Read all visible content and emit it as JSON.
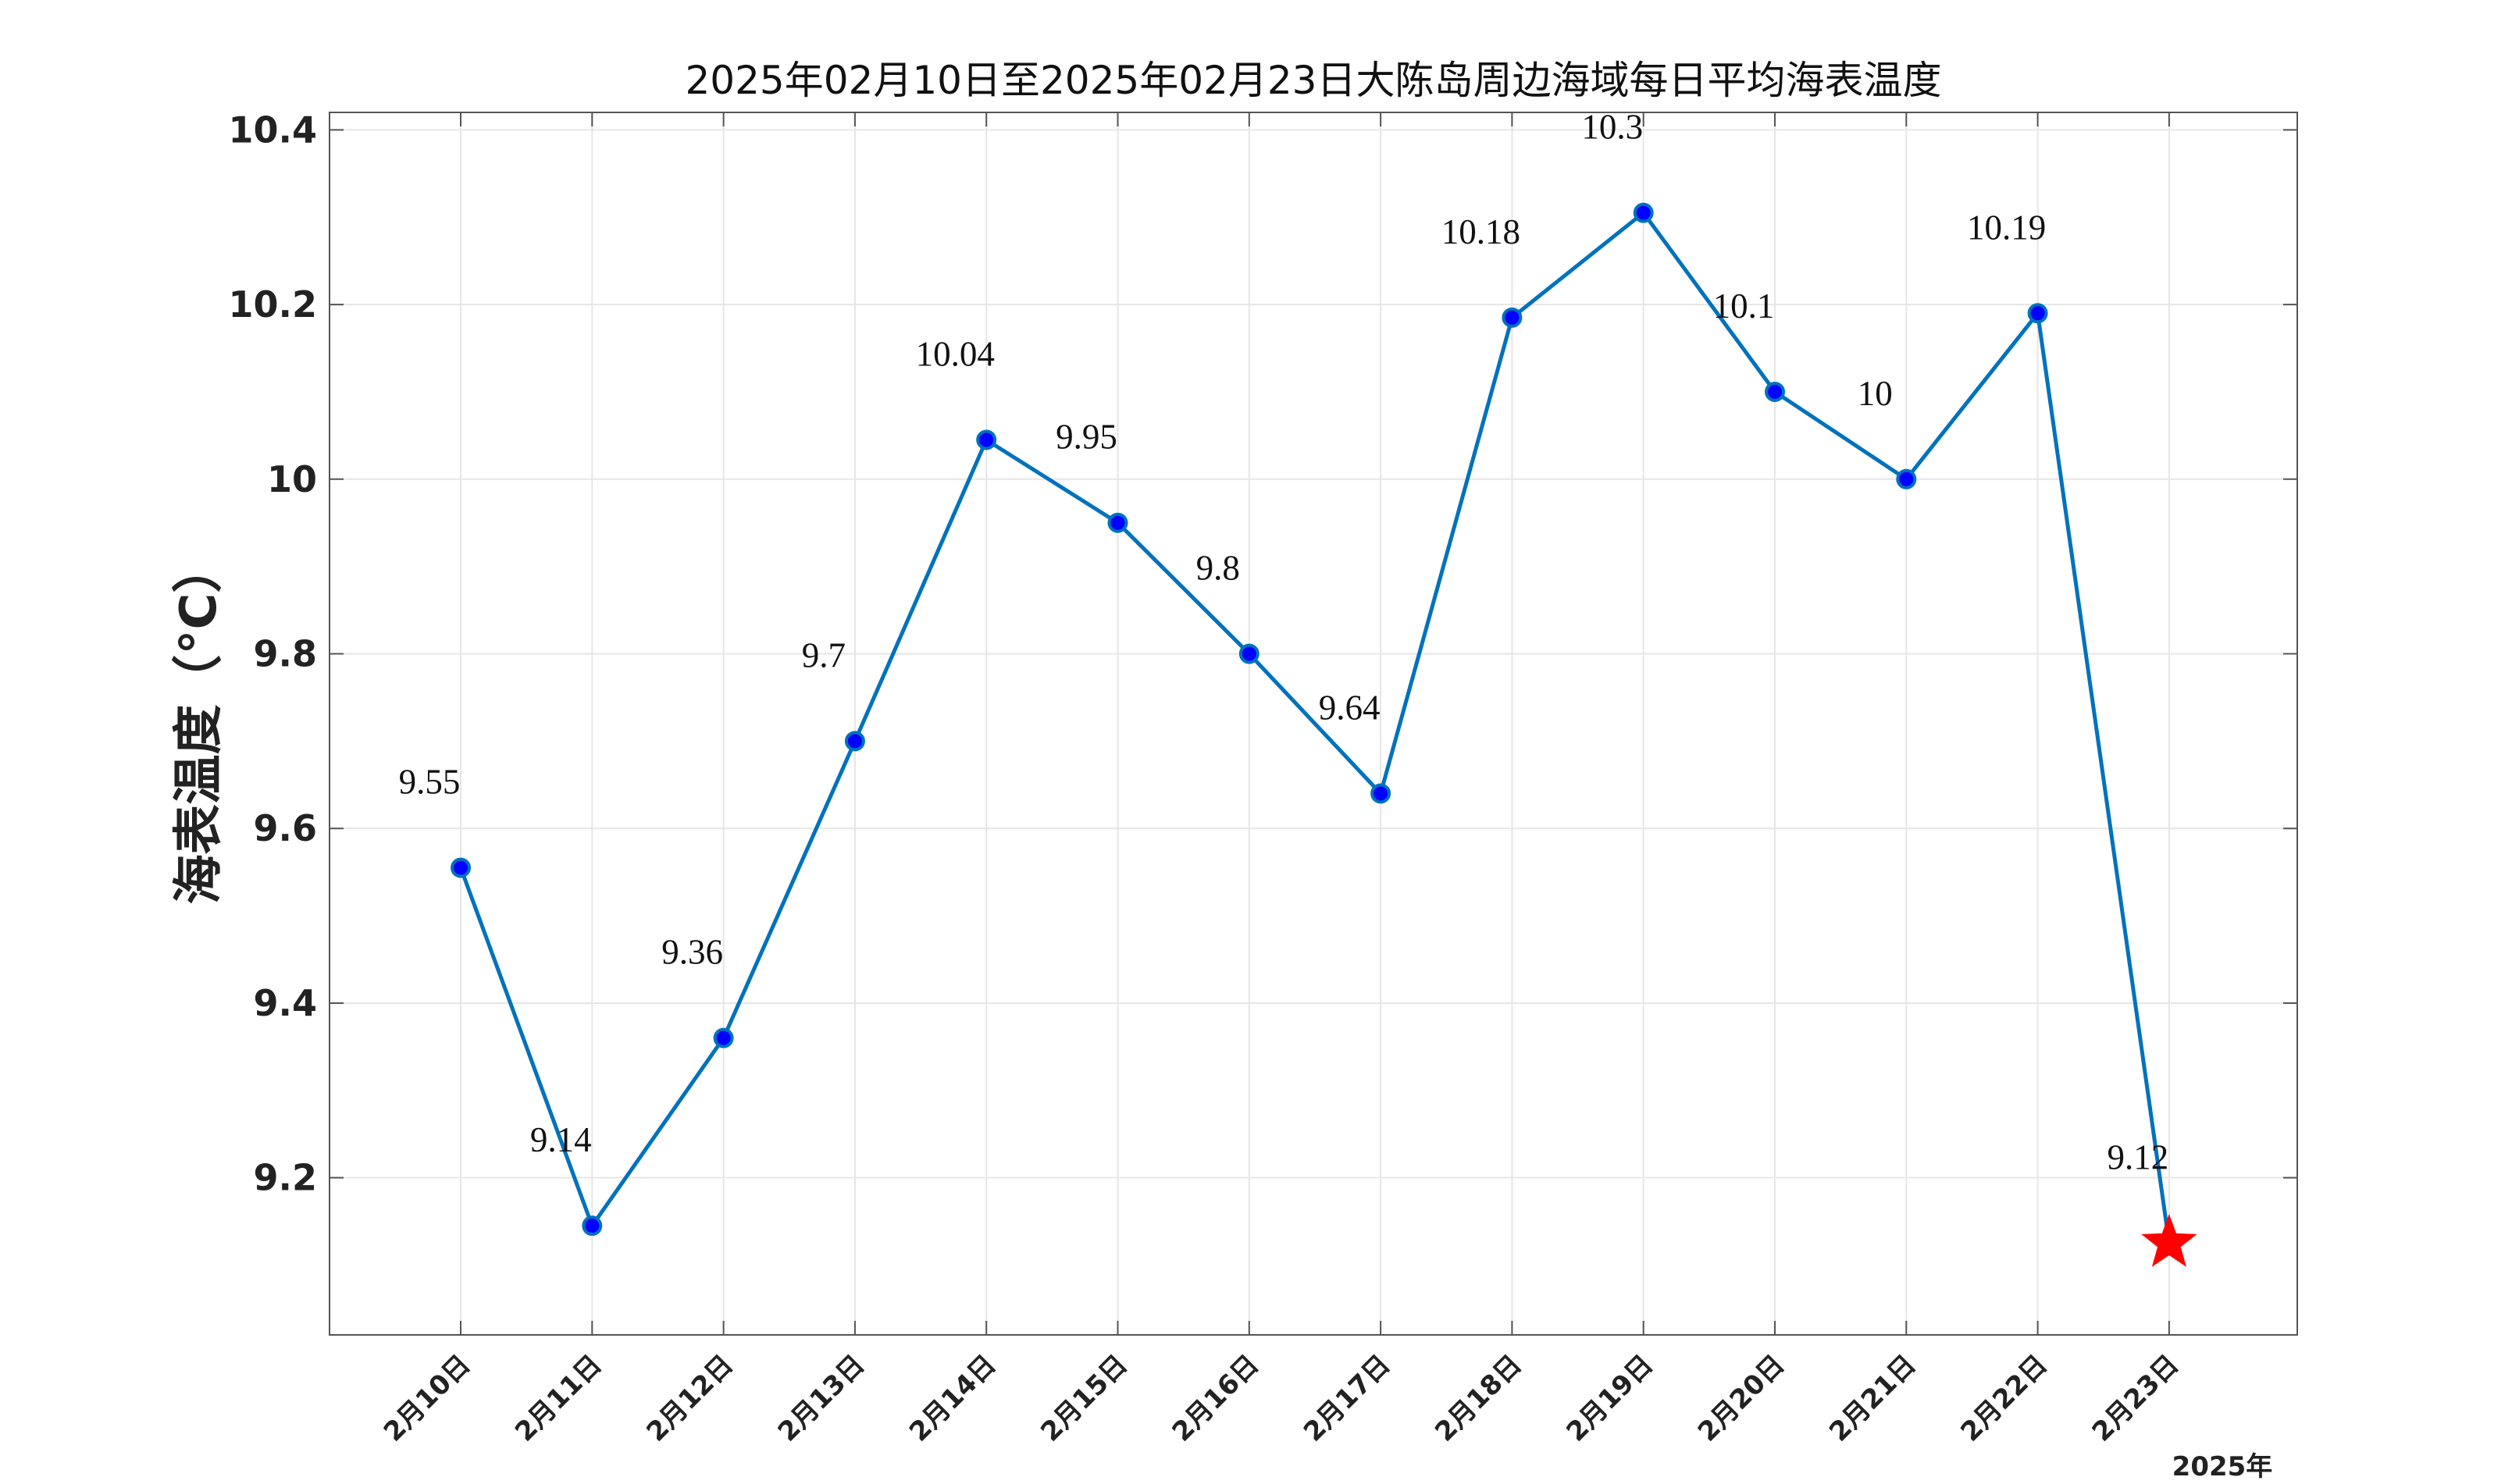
{
  "chart_data": {
    "type": "line",
    "title": "2025年02月10日至2025年02月23日大陈岛周边海域每日平均海表温度",
    "xlabel": "",
    "ylabel": "海表温度（°C）",
    "year_label": "2025年",
    "categories": [
      "2月10日",
      "2月11日",
      "2月12日",
      "2月13日",
      "2月14日",
      "2月15日",
      "2月16日",
      "2月17日",
      "2月18日",
      "2月19日",
      "2月20日",
      "2月21日",
      "2月22日",
      "2月23日"
    ],
    "values": [
      9.555,
      9.145,
      9.36,
      9.7,
      10.045,
      9.95,
      9.8,
      9.64,
      10.185,
      10.305,
      10.1,
      10.0,
      10.19,
      9.125
    ],
    "data_labels": [
      "9.55",
      "9.14",
      "9.36",
      "9.7",
      "10.04",
      "9.95",
      "9.8",
      "9.64",
      "10.18",
      "10.3",
      "10.1",
      "10",
      "10.19",
      "9.12"
    ],
    "ylim": [
      9.02,
      10.42
    ],
    "yticks": [
      9.2,
      9.4,
      9.6,
      9.8,
      10.0,
      10.2,
      10.4
    ],
    "ytick_labels": [
      "9.2",
      "9.4",
      "9.6",
      "9.8",
      "10",
      "10.2",
      "10.4"
    ],
    "grid": true,
    "legend": "none",
    "last_point_marker": "star",
    "colors": {
      "line": "#0072BD",
      "marker_fill": "#0000FF",
      "marker_edge": "#0072BD",
      "highlight": "#FF0000",
      "grid": "#e6e6e6",
      "axis": "#555555"
    }
  }
}
